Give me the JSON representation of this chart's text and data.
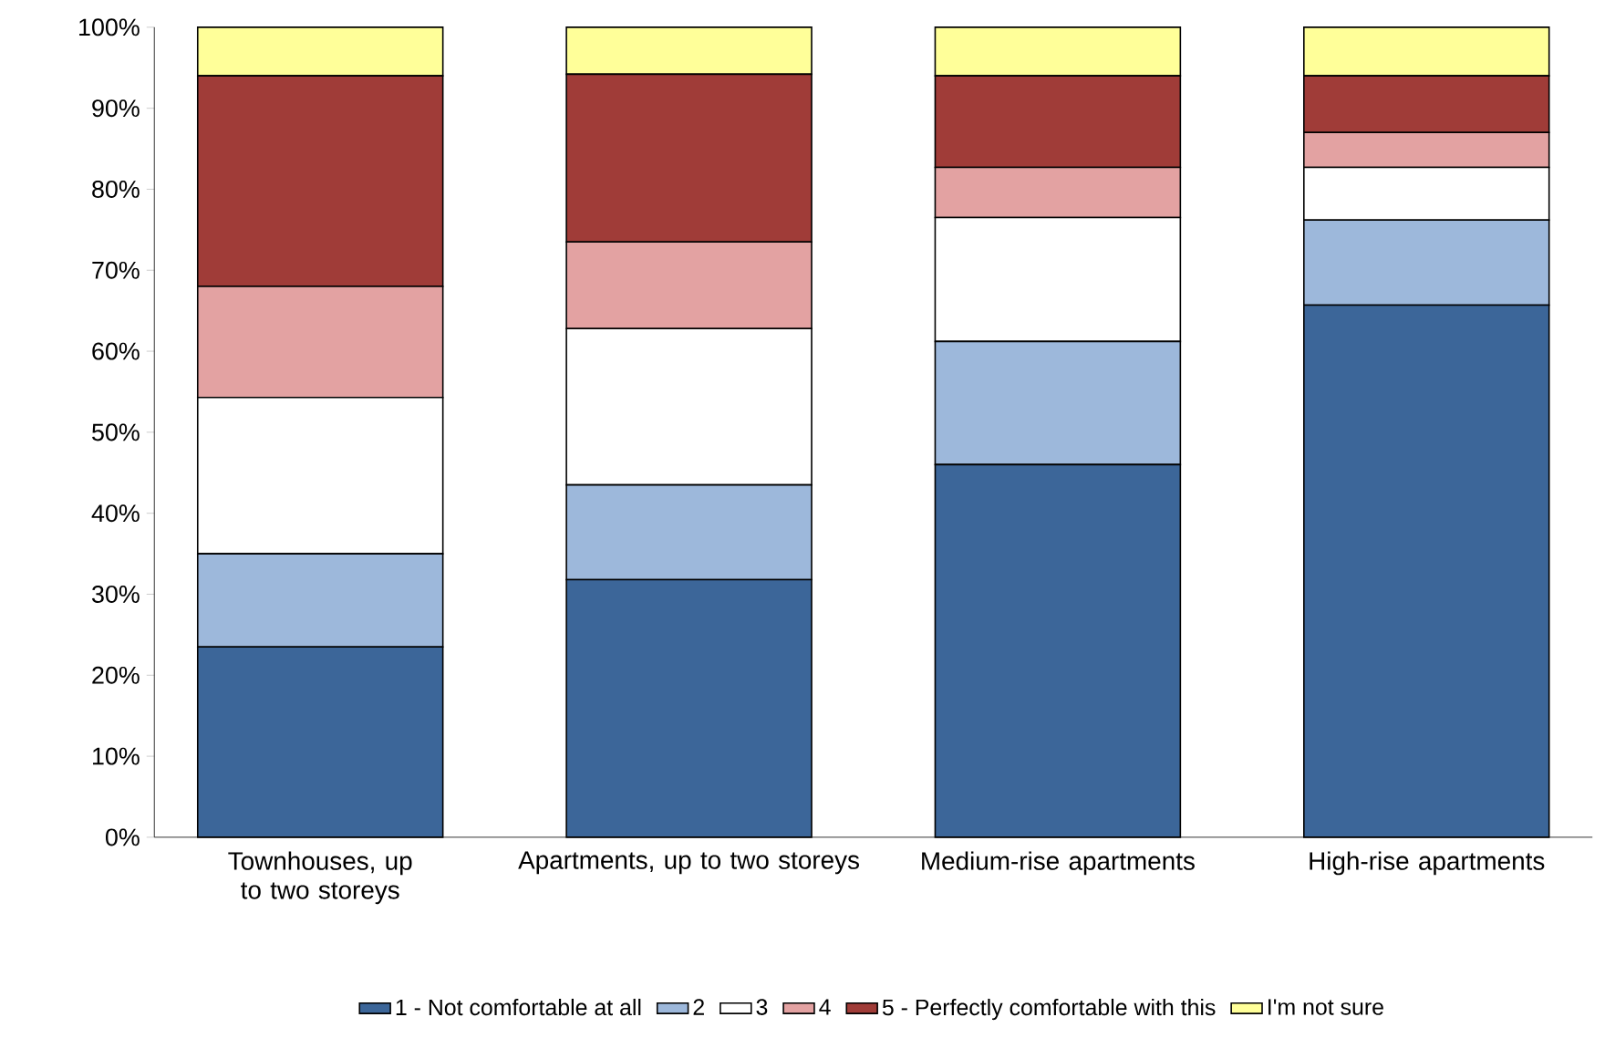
{
  "chart_data": {
    "type": "bar",
    "stacked": true,
    "categories": [
      "Townhouses, up to two storeys",
      "Apartments, up to two storeys",
      "Medium-rise apartments",
      "High-rise apartments"
    ],
    "series": [
      {
        "name": "1 - Not comfortable at all",
        "color": "#3c6699",
        "values": [
          23.5,
          31.8,
          46,
          65.7
        ]
      },
      {
        "name": "2",
        "color": "#9db8db",
        "values": [
          11.5,
          11.7,
          15.2,
          10.5
        ]
      },
      {
        "name": "3",
        "color": "#ffffff",
        "values": [
          19.3,
          19.3,
          15.3,
          6.5
        ]
      },
      {
        "name": "4",
        "color": "#e3a2a2",
        "values": [
          13.7,
          10.7,
          6.2,
          4.3
        ]
      },
      {
        "name": "5 - Perfectly comfortable with this",
        "color": "#a03c38",
        "values": [
          26,
          20.7,
          11.3,
          7
        ]
      },
      {
        "name": "I'm not sure",
        "color": "#ffff99",
        "values": [
          6,
          5.8,
          6,
          6
        ]
      }
    ],
    "ylim": [
      0,
      100
    ],
    "yticks": [
      {
        "value": 0,
        "label": "0%"
      },
      {
        "value": 10,
        "label": "10%"
      },
      {
        "value": 20,
        "label": "20%"
      },
      {
        "value": 30,
        "label": "30%"
      },
      {
        "value": 40,
        "label": "40%"
      },
      {
        "value": 50,
        "label": "50%"
      },
      {
        "value": 60,
        "label": "60%"
      },
      {
        "value": 70,
        "label": "70%"
      },
      {
        "value": 80,
        "label": "80%"
      },
      {
        "value": 90,
        "label": "90%"
      },
      {
        "value": 100,
        "label": "100%"
      }
    ],
    "legend": "bottom"
  }
}
